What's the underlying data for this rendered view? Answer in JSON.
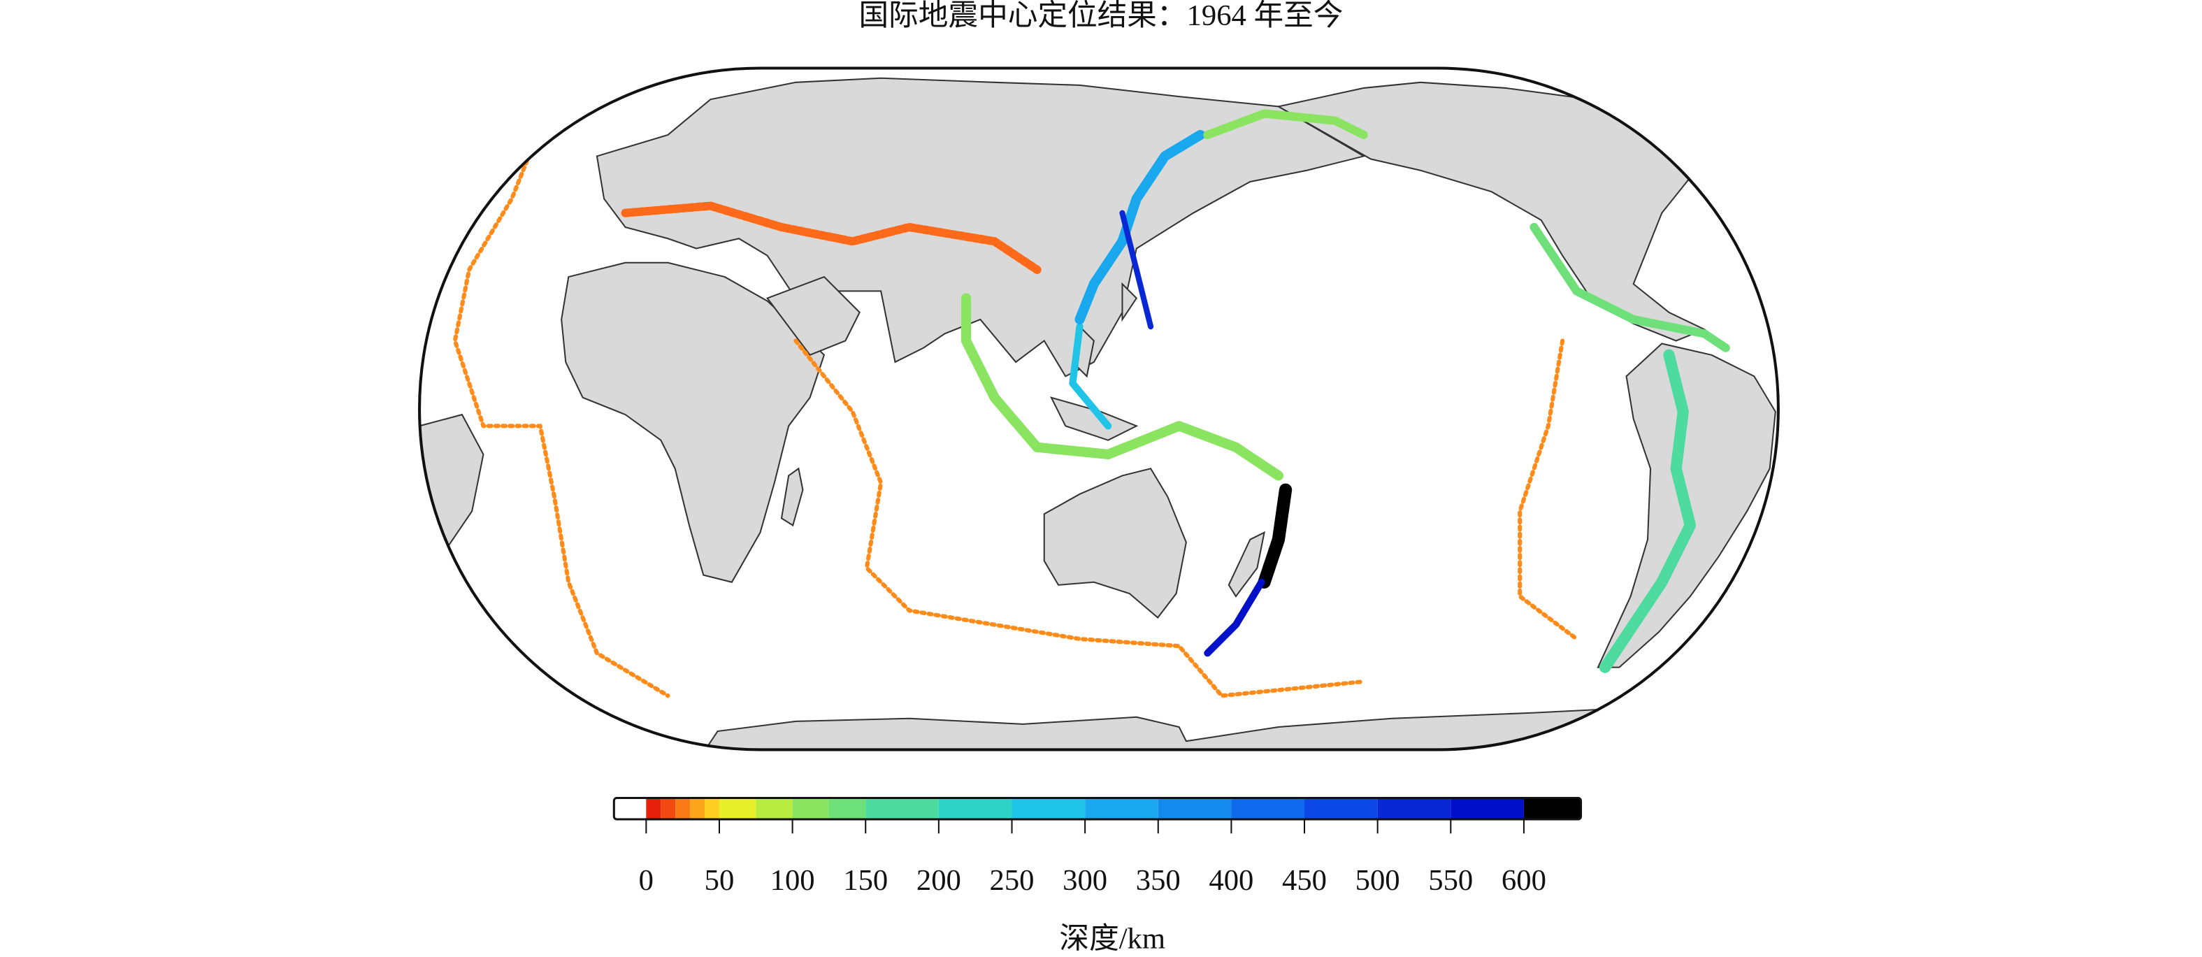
{
  "title": "国际地震中心定位结果：1964 年至今",
  "colorbar": {
    "label": "深度/km",
    "xlim": [
      -22,
      639
    ],
    "xticks": [
      0,
      50,
      100,
      150,
      200,
      250,
      300,
      350,
      400,
      450,
      500,
      550,
      600
    ],
    "bins": [
      -22,
      0,
      10,
      20,
      30,
      40,
      50,
      75,
      100,
      125,
      150,
      200,
      250,
      300,
      350,
      400,
      450,
      500,
      550,
      600,
      639
    ],
    "colors": [
      "#ffffff",
      "#e6200a",
      "#f04a10",
      "#f77a15",
      "#fca51c",
      "#fdd023",
      "#e8f02a",
      "#b8ec40",
      "#8ae460",
      "#6ee07a",
      "#4edba0",
      "#2ed3c8",
      "#1fc4e6",
      "#19a8ee",
      "#148aee",
      "#106aee",
      "#0c48e6",
      "#0828d6",
      "#0010c8",
      "#000000"
    ]
  }
}
